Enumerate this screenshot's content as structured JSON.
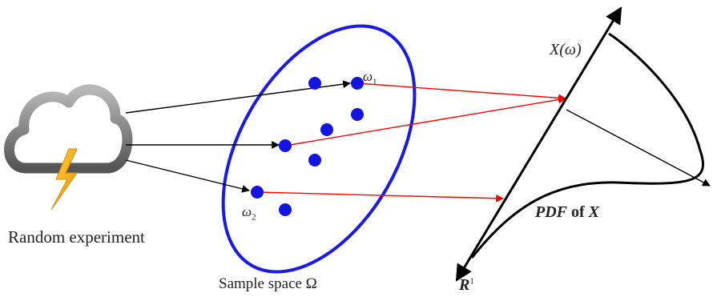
{
  "labels": {
    "random_experiment": "Random experiment",
    "sample_space": "Sample space Ω",
    "x_of_omega": "X(ω)",
    "omega1_symbol": "ω",
    "omega1_sub": "1",
    "omega2_symbol": "ω",
    "omega2_sub": "2",
    "pdf_prefix": "PDF",
    "pdf_of": " of ",
    "pdf_var": "X",
    "real_line": "R",
    "real_line_sup": "1"
  },
  "icons": {
    "cloud": "storm-cloud-icon",
    "bolt": "lightning-bolt-icon"
  },
  "colors": {
    "sample_space_outline": "#1a1ae6",
    "sample_point": "#1414e0",
    "mapping_arrow": "#ff0000",
    "experiment_arrow": "#000000",
    "axis": "#000000",
    "bolt": "#f5b800"
  }
}
